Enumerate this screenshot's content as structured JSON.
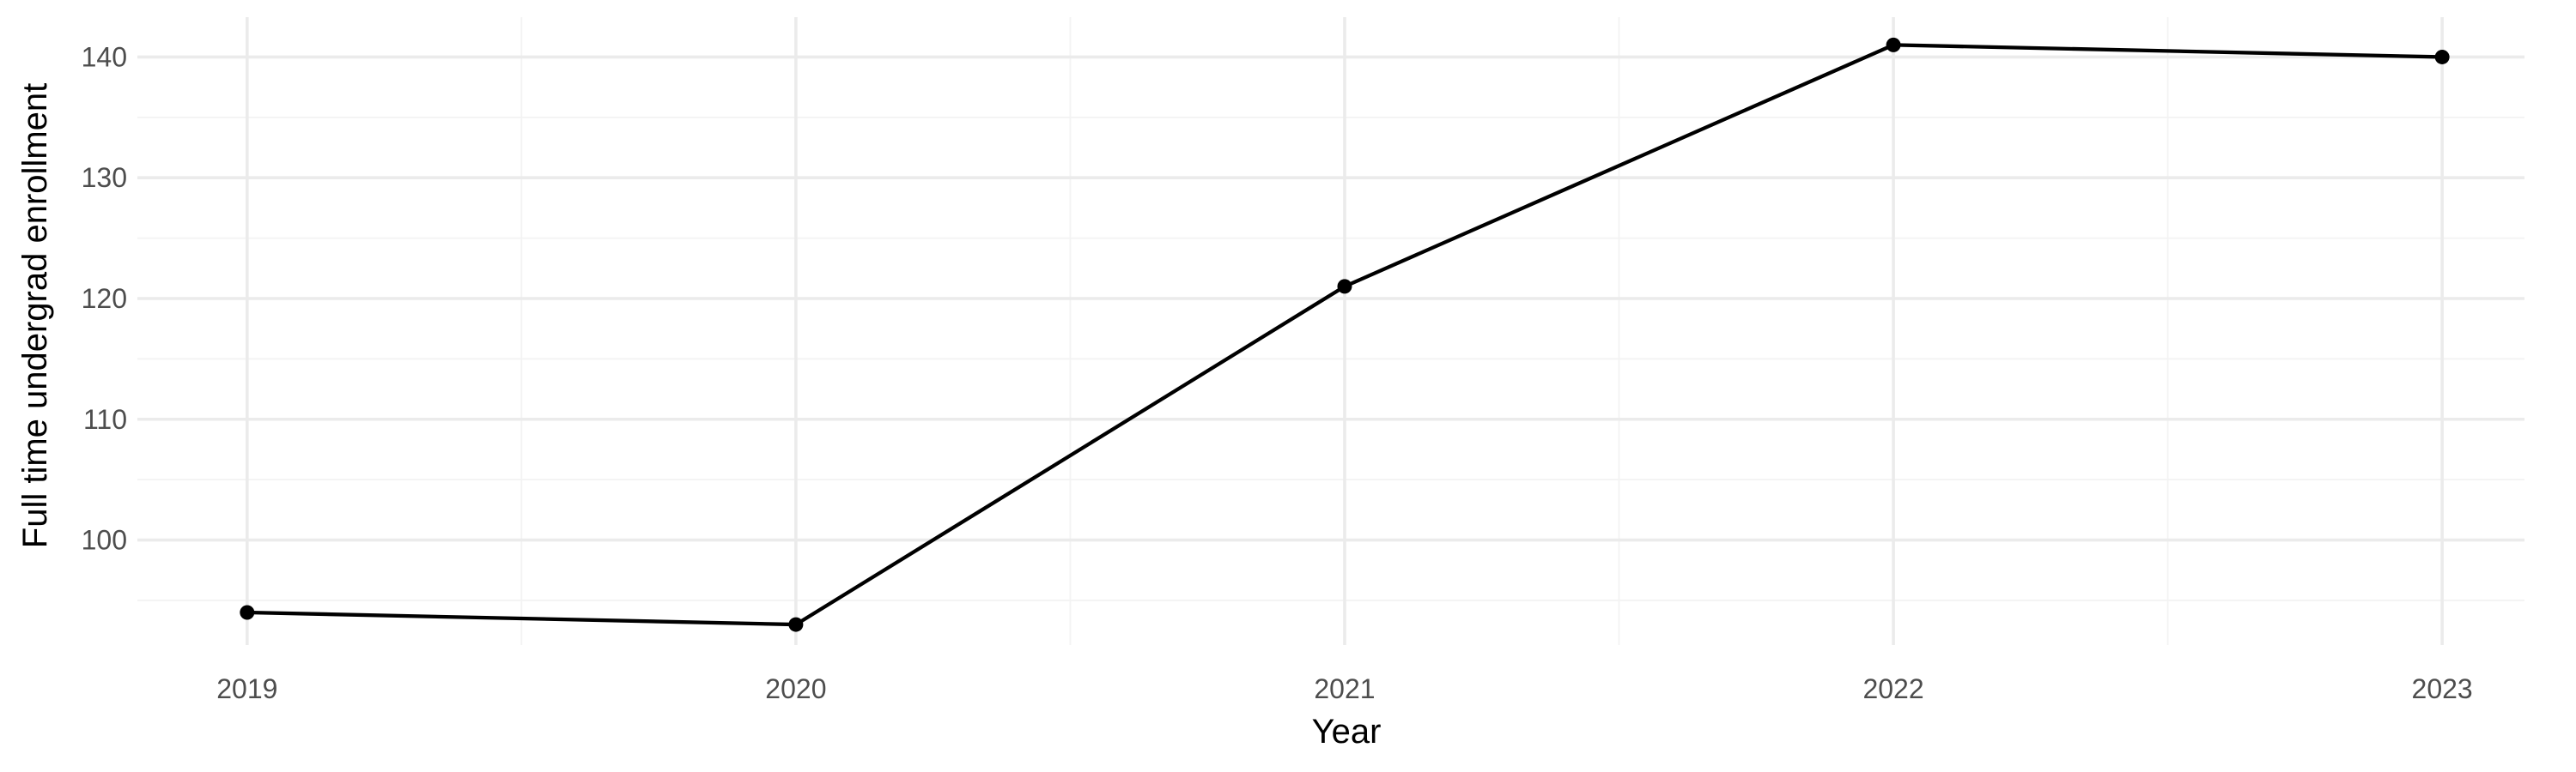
{
  "chart_data": {
    "type": "line",
    "title": "",
    "xlabel": "Year",
    "ylabel": "Full time undergrad enrollment",
    "x": [
      2019,
      2020,
      2021,
      2022,
      2023
    ],
    "x_tick_labels": [
      "2019",
      "2020",
      "2021",
      "2022",
      "2023"
    ],
    "y_ticks": [
      100,
      110,
      120,
      130,
      140
    ],
    "y_tick_labels": [
      "100",
      "110",
      "120",
      "130",
      "140"
    ],
    "xlim": [
      2018.8,
      2023.15
    ],
    "ylim": [
      91.3,
      143.3
    ],
    "grid": true,
    "series": [
      {
        "values": [
          94,
          93,
          121,
          141,
          140
        ],
        "color": "#000000"
      }
    ]
  }
}
